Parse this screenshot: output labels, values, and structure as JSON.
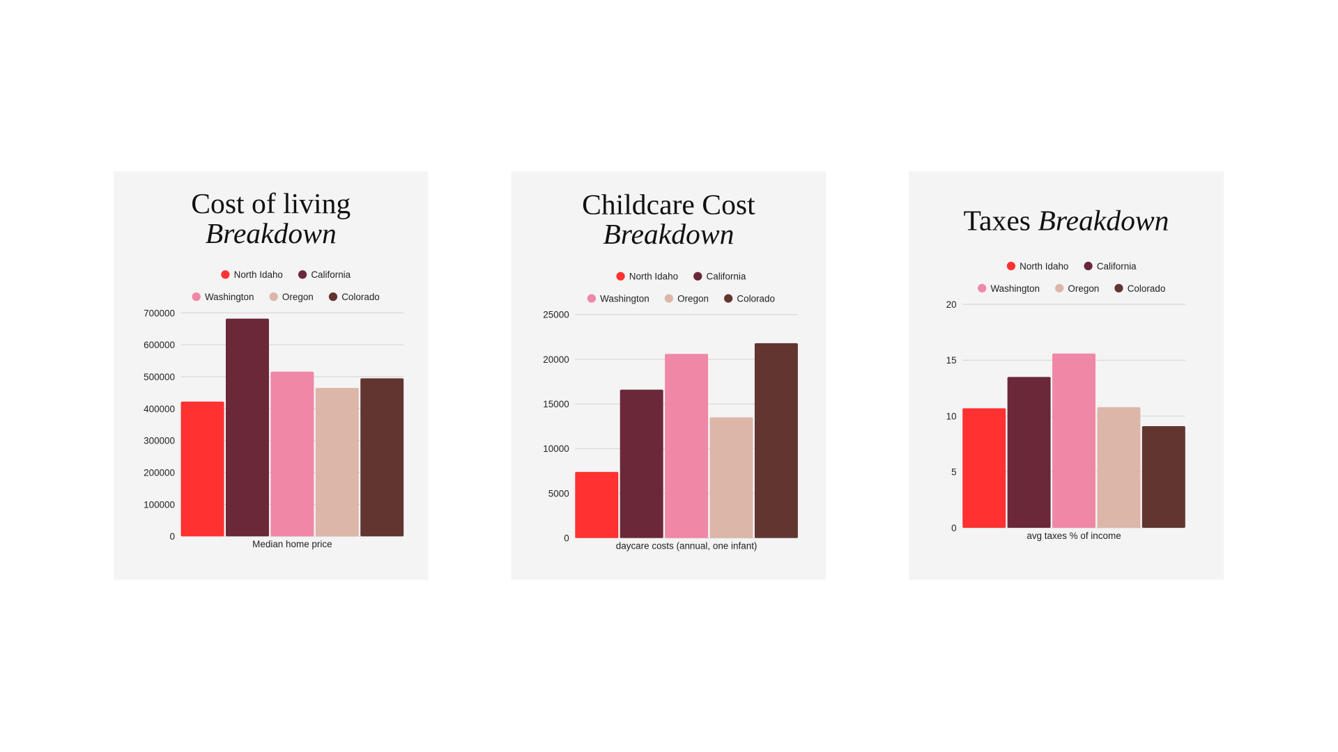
{
  "chart_data": [
    {
      "type": "bar",
      "title": [
        "Cost of living",
        "Breakdown"
      ],
      "categories": [
        "Median home price"
      ],
      "series": [
        {
          "name": "North Idaho",
          "color": "#ff3131",
          "values": [
            422000
          ]
        },
        {
          "name": "California",
          "color": "#6a2838",
          "values": [
            682000
          ]
        },
        {
          "name": "Washington",
          "color": "#ef87a6",
          "values": [
            516000
          ]
        },
        {
          "name": "Oregon",
          "color": "#dcb6a9",
          "values": [
            465000
          ]
        },
        {
          "name": "Colorado",
          "color": "#623530",
          "values": [
            495000
          ]
        }
      ],
      "ylim": [
        0,
        700000
      ],
      "yticks": [
        0,
        100000,
        200000,
        300000,
        400000,
        500000,
        600000,
        700000
      ],
      "grid": true
    },
    {
      "type": "bar",
      "title": [
        "Childcare Cost",
        "Breakdown"
      ],
      "categories": [
        "daycare costs (annual, one infant)"
      ],
      "series": [
        {
          "name": "North Idaho",
          "color": "#ff3131",
          "values": [
            7400
          ]
        },
        {
          "name": "California",
          "color": "#6a2838",
          "values": [
            16600
          ]
        },
        {
          "name": "Washington",
          "color": "#ef87a6",
          "values": [
            20600
          ]
        },
        {
          "name": "Oregon",
          "color": "#dcb6a9",
          "values": [
            13500
          ]
        },
        {
          "name": "Colorado",
          "color": "#623530",
          "values": [
            21800
          ]
        }
      ],
      "ylim": [
        0,
        25000
      ],
      "yticks": [
        0,
        5000,
        10000,
        15000,
        20000,
        25000
      ],
      "grid": true
    },
    {
      "type": "bar",
      "title": [
        "Taxes",
        "Breakdown"
      ],
      "categories": [
        "avg taxes % of income"
      ],
      "series": [
        {
          "name": "North Idaho",
          "color": "#ff3131",
          "values": [
            10.7
          ]
        },
        {
          "name": "California",
          "color": "#6a2838",
          "values": [
            13.5
          ]
        },
        {
          "name": "Washington",
          "color": "#ef87a6",
          "values": [
            15.6
          ]
        },
        {
          "name": "Oregon",
          "color": "#dcb6a9",
          "values": [
            10.8
          ]
        },
        {
          "name": "Colorado",
          "color": "#623530",
          "values": [
            9.1
          ]
        }
      ],
      "ylim": [
        0,
        20
      ],
      "yticks": [
        0,
        5,
        10,
        15,
        20
      ],
      "grid": true
    }
  ]
}
